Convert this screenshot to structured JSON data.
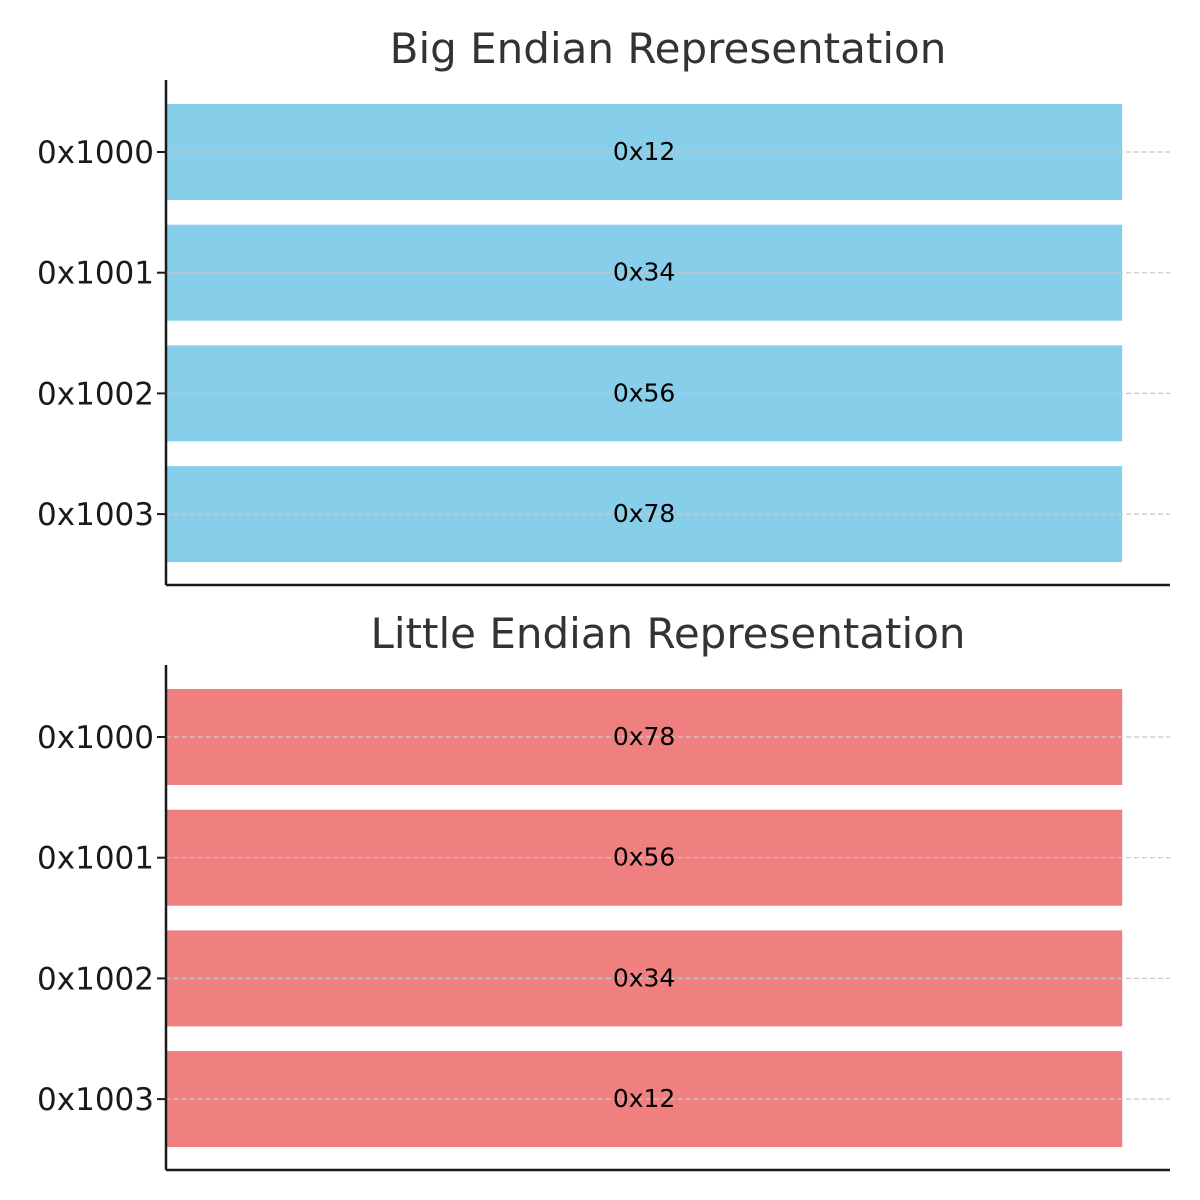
{
  "chart_data": [
    {
      "type": "bar",
      "orientation": "horizontal",
      "title": "Big Endian Representation",
      "categories": [
        "0x1000",
        "0x1001",
        "0x1002",
        "0x1003"
      ],
      "values": [
        1,
        1,
        1,
        1
      ],
      "bar_labels": [
        "0x12",
        "0x34",
        "0x56",
        "0x78"
      ],
      "color": "#87CEEB",
      "xlim": [
        0,
        1.05
      ],
      "grid": "y-dashed"
    },
    {
      "type": "bar",
      "orientation": "horizontal",
      "title": "Little Endian Representation",
      "categories": [
        "0x1000",
        "0x1001",
        "0x1002",
        "0x1003"
      ],
      "values": [
        1,
        1,
        1,
        1
      ],
      "bar_labels": [
        "0x78",
        "0x56",
        "0x34",
        "0x12"
      ],
      "color": "#F08080",
      "xlim": [
        0,
        1.05
      ],
      "grid": "y-dashed"
    }
  ]
}
